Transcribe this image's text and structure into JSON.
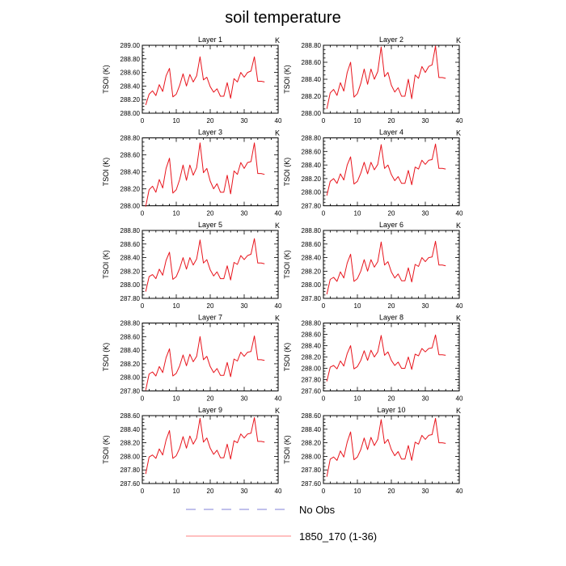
{
  "title": "soil temperature",
  "legend": [
    {
      "label": "No Obs",
      "color": "#8080d8",
      "style": "dashed"
    },
    {
      "label": "1850_170 (1-36)",
      "color": "#ff8080",
      "style": "solid"
    }
  ],
  "chart_data": [
    {
      "type": "line",
      "title": "Layer 1",
      "unit": "K",
      "ylabel": "TSOI  (K)",
      "xlim": [
        0,
        40
      ],
      "xticks": [
        0,
        10,
        20,
        30,
        40
      ],
      "ylim": [
        288.0,
        289.0
      ],
      "yticks": [
        "288.00",
        "288.20",
        "288.40",
        "288.60",
        "288.80",
        "289.00"
      ],
      "series": [
        {
          "name": "1850_170 (1-36)",
          "color": "#e8141c",
          "x": [
            1,
            2,
            3,
            4,
            5,
            6,
            7,
            8,
            9,
            10,
            11,
            12,
            13,
            14,
            15,
            16,
            17,
            18,
            19,
            20,
            21,
            22,
            23,
            24,
            25,
            26,
            27,
            28,
            29,
            30,
            31,
            32,
            33,
            34,
            35,
            36
          ],
          "values": [
            288.12,
            288.28,
            288.33,
            288.26,
            288.42,
            288.32,
            288.55,
            288.66,
            288.24,
            288.28,
            288.41,
            288.58,
            288.4,
            288.57,
            288.46,
            288.55,
            288.83,
            288.49,
            288.53,
            288.39,
            288.31,
            288.36,
            288.25,
            288.25,
            288.45,
            288.22,
            288.51,
            288.46,
            288.6,
            288.53,
            288.6,
            288.62,
            288.83,
            288.47,
            288.47,
            288.46
          ]
        }
      ]
    },
    {
      "type": "line",
      "title": "Layer 2",
      "unit": "K",
      "ylabel": "TSOI  (K)",
      "xlim": [
        0,
        40
      ],
      "xticks": [
        0,
        10,
        20,
        30,
        40
      ],
      "ylim": [
        288.0,
        288.8
      ],
      "yticks": [
        "288.00",
        "288.20",
        "288.40",
        "288.60",
        "288.80"
      ],
      "series": [
        {
          "name": "1850_170 (1-36)",
          "color": "#e8141c",
          "x": [
            1,
            2,
            3,
            4,
            5,
            6,
            7,
            8,
            9,
            10,
            11,
            12,
            13,
            14,
            15,
            16,
            17,
            18,
            19,
            20,
            21,
            22,
            23,
            24,
            25,
            26,
            27,
            28,
            29,
            30,
            31,
            32,
            33,
            34,
            35,
            36
          ],
          "values": [
            288.05,
            288.24,
            288.28,
            288.21,
            288.36,
            288.26,
            288.48,
            288.6,
            288.19,
            288.23,
            288.35,
            288.52,
            288.34,
            288.52,
            288.4,
            288.49,
            288.78,
            288.43,
            288.48,
            288.33,
            288.25,
            288.3,
            288.2,
            288.2,
            288.4,
            288.17,
            288.45,
            288.41,
            288.55,
            288.48,
            288.55,
            288.57,
            288.79,
            288.42,
            288.42,
            288.41
          ]
        }
      ]
    },
    {
      "type": "line",
      "title": "Layer 3",
      "unit": "K",
      "ylabel": "TSOI  (K)",
      "xlim": [
        0,
        40
      ],
      "xticks": [
        0,
        10,
        20,
        30,
        40
      ],
      "ylim": [
        288.0,
        288.8
      ],
      "yticks": [
        "288.00",
        "288.20",
        "288.40",
        "288.60",
        "288.80"
      ],
      "series": [
        {
          "name": "1850_170 (1-36)",
          "color": "#e8141c",
          "x": [
            1,
            2,
            3,
            4,
            5,
            6,
            7,
            8,
            9,
            10,
            11,
            12,
            13,
            14,
            15,
            16,
            17,
            18,
            19,
            20,
            21,
            22,
            23,
            24,
            25,
            26,
            27,
            28,
            29,
            30,
            31,
            32,
            33,
            34,
            35,
            36
          ],
          "values": [
            287.99,
            288.19,
            288.23,
            288.16,
            288.31,
            288.21,
            288.44,
            288.56,
            288.15,
            288.19,
            288.31,
            288.48,
            288.3,
            288.48,
            288.36,
            288.45,
            288.74,
            288.39,
            288.44,
            288.29,
            288.2,
            288.26,
            288.16,
            288.16,
            288.36,
            288.14,
            288.41,
            288.37,
            288.51,
            288.44,
            288.51,
            288.52,
            288.74,
            288.38,
            288.38,
            288.37
          ]
        }
      ]
    },
    {
      "type": "line",
      "title": "Layer 4",
      "unit": "K",
      "ylabel": "TSOI  (K)",
      "xlim": [
        0,
        40
      ],
      "xticks": [
        0,
        10,
        20,
        30,
        40
      ],
      "ylim": [
        287.8,
        288.8
      ],
      "yticks": [
        "287.80",
        "288.00",
        "288.20",
        "288.40",
        "288.60",
        "288.80"
      ],
      "series": [
        {
          "name": "1850_170 (1-36)",
          "color": "#e8141c",
          "x": [
            1,
            2,
            3,
            4,
            5,
            6,
            7,
            8,
            9,
            10,
            11,
            12,
            13,
            14,
            15,
            16,
            17,
            18,
            19,
            20,
            21,
            22,
            23,
            24,
            25,
            26,
            27,
            28,
            29,
            30,
            31,
            32,
            33,
            34,
            35,
            36
          ],
          "values": [
            287.95,
            288.16,
            288.2,
            288.13,
            288.27,
            288.18,
            288.4,
            288.52,
            288.12,
            288.16,
            288.28,
            288.44,
            288.27,
            288.44,
            288.33,
            288.41,
            288.7,
            288.35,
            288.4,
            288.26,
            288.17,
            288.23,
            288.13,
            288.13,
            288.32,
            288.11,
            288.37,
            288.34,
            288.47,
            288.41,
            288.47,
            288.48,
            288.71,
            288.35,
            288.35,
            288.34
          ]
        }
      ]
    },
    {
      "type": "line",
      "title": "Layer 5",
      "unit": "K",
      "ylabel": "TSOI  (K)",
      "xlim": [
        0,
        40
      ],
      "xticks": [
        0,
        10,
        20,
        30,
        40
      ],
      "ylim": [
        287.8,
        288.8
      ],
      "yticks": [
        "287.80",
        "288.00",
        "288.20",
        "288.40",
        "288.60",
        "288.80"
      ],
      "series": [
        {
          "name": "1850_170 (1-36)",
          "color": "#e8141c",
          "x": [
            1,
            2,
            3,
            4,
            5,
            6,
            7,
            8,
            9,
            10,
            11,
            12,
            13,
            14,
            15,
            16,
            17,
            18,
            19,
            20,
            21,
            22,
            23,
            24,
            25,
            26,
            27,
            28,
            29,
            30,
            31,
            32,
            33,
            34,
            35,
            36
          ],
          "values": [
            287.9,
            288.12,
            288.15,
            288.09,
            288.23,
            288.14,
            288.36,
            288.48,
            288.08,
            288.12,
            288.24,
            288.4,
            288.23,
            288.4,
            288.29,
            288.38,
            288.66,
            288.32,
            288.37,
            288.22,
            288.13,
            288.19,
            288.09,
            288.09,
            288.28,
            288.07,
            288.33,
            288.3,
            288.43,
            288.37,
            288.43,
            288.45,
            288.68,
            288.32,
            288.32,
            288.31
          ]
        }
      ]
    },
    {
      "type": "line",
      "title": "Layer 6",
      "unit": "K",
      "ylabel": "TSOI  (K)",
      "xlim": [
        0,
        40
      ],
      "xticks": [
        0,
        10,
        20,
        30,
        40
      ],
      "ylim": [
        287.8,
        288.8
      ],
      "yticks": [
        "287.80",
        "288.00",
        "288.20",
        "288.40",
        "288.60",
        "288.80"
      ],
      "series": [
        {
          "name": "1850_170 (1-36)",
          "color": "#e8141c",
          "x": [
            1,
            2,
            3,
            4,
            5,
            6,
            7,
            8,
            9,
            10,
            11,
            12,
            13,
            14,
            15,
            16,
            17,
            18,
            19,
            20,
            21,
            22,
            23,
            24,
            25,
            26,
            27,
            28,
            29,
            30,
            31,
            32,
            33,
            34,
            35,
            36
          ],
          "values": [
            287.86,
            288.08,
            288.11,
            288.05,
            288.19,
            288.1,
            288.32,
            288.45,
            288.05,
            288.09,
            288.2,
            288.37,
            288.2,
            288.37,
            288.26,
            288.34,
            288.63,
            288.29,
            288.34,
            288.19,
            288.1,
            288.16,
            288.06,
            288.06,
            288.25,
            288.04,
            288.3,
            288.27,
            288.4,
            288.34,
            288.4,
            288.41,
            288.64,
            288.29,
            288.29,
            288.28
          ]
        }
      ]
    },
    {
      "type": "line",
      "title": "Layer 7",
      "unit": "K",
      "ylabel": "TSOI  (K)",
      "xlim": [
        0,
        40
      ],
      "xticks": [
        0,
        10,
        20,
        30,
        40
      ],
      "ylim": [
        287.8,
        288.8
      ],
      "yticks": [
        "287.80",
        "288.00",
        "288.20",
        "288.40",
        "288.60",
        "288.80"
      ],
      "series": [
        {
          "name": "1850_170 (1-36)",
          "color": "#e8141c",
          "x": [
            1,
            2,
            3,
            4,
            5,
            6,
            7,
            8,
            9,
            10,
            11,
            12,
            13,
            14,
            15,
            16,
            17,
            18,
            19,
            20,
            21,
            22,
            23,
            24,
            25,
            26,
            27,
            28,
            29,
            30,
            31,
            32,
            33,
            34,
            35,
            36
          ],
          "values": [
            287.81,
            288.05,
            288.08,
            288.02,
            288.16,
            288.07,
            288.29,
            288.42,
            288.02,
            288.06,
            288.17,
            288.33,
            288.17,
            288.34,
            288.23,
            288.31,
            288.6,
            288.26,
            288.31,
            288.16,
            288.07,
            288.13,
            288.03,
            288.03,
            288.22,
            288.01,
            288.27,
            288.24,
            288.37,
            288.31,
            288.37,
            288.38,
            288.61,
            288.26,
            288.26,
            288.25
          ]
        }
      ]
    },
    {
      "type": "line",
      "title": "Layer 8",
      "unit": "K",
      "ylabel": "TSOI  (K)",
      "xlim": [
        0,
        40
      ],
      "xticks": [
        0,
        10,
        20,
        30,
        40
      ],
      "ylim": [
        287.6,
        288.8
      ],
      "yticks": [
        "287.60",
        "287.80",
        "288.00",
        "288.20",
        "288.40",
        "288.60",
        "288.80"
      ],
      "series": [
        {
          "name": "1850_170 (1-36)",
          "color": "#e8141c",
          "x": [
            1,
            2,
            3,
            4,
            5,
            6,
            7,
            8,
            9,
            10,
            11,
            12,
            13,
            14,
            15,
            16,
            17,
            18,
            19,
            20,
            21,
            22,
            23,
            24,
            25,
            26,
            27,
            28,
            29,
            30,
            31,
            32,
            33,
            34,
            35,
            36
          ],
          "values": [
            287.77,
            288.02,
            288.05,
            287.99,
            288.13,
            288.04,
            288.26,
            288.4,
            287.99,
            288.03,
            288.14,
            288.31,
            288.14,
            288.32,
            288.2,
            288.29,
            288.58,
            288.23,
            288.29,
            288.14,
            288.05,
            288.11,
            288.0,
            288.0,
            288.2,
            287.98,
            288.25,
            288.22,
            288.35,
            288.29,
            288.35,
            288.36,
            288.59,
            288.24,
            288.24,
            288.23
          ]
        }
      ]
    },
    {
      "type": "line",
      "title": "Layer 9",
      "unit": "K",
      "ylabel": "TSOI  (K)",
      "xlim": [
        0,
        40
      ],
      "xticks": [
        0,
        10,
        20,
        30,
        40
      ],
      "ylim": [
        287.6,
        288.6
      ],
      "yticks": [
        "287.60",
        "287.80",
        "288.00",
        "288.20",
        "288.40",
        "288.60"
      ],
      "series": [
        {
          "name": "1850_170 (1-36)",
          "color": "#e8141c",
          "x": [
            1,
            2,
            3,
            4,
            5,
            6,
            7,
            8,
            9,
            10,
            11,
            12,
            13,
            14,
            15,
            16,
            17,
            18,
            19,
            20,
            21,
            22,
            23,
            24,
            25,
            26,
            27,
            28,
            29,
            30,
            31,
            32,
            33,
            34,
            35,
            36
          ],
          "values": [
            287.74,
            287.99,
            288.02,
            287.97,
            288.11,
            288.02,
            288.24,
            288.38,
            287.97,
            288.01,
            288.12,
            288.29,
            288.12,
            288.3,
            288.18,
            288.27,
            288.56,
            288.21,
            288.27,
            288.12,
            288.03,
            288.09,
            287.98,
            287.98,
            288.18,
            287.96,
            288.23,
            288.2,
            288.33,
            288.27,
            288.33,
            288.34,
            288.57,
            288.22,
            288.22,
            288.21
          ]
        }
      ]
    },
    {
      "type": "line",
      "title": "Layer 10",
      "unit": "K",
      "ylabel": "TSOI  (K)",
      "xlim": [
        0,
        40
      ],
      "xticks": [
        0,
        10,
        20,
        30,
        40
      ],
      "ylim": [
        287.6,
        288.6
      ],
      "yticks": [
        "287.60",
        "287.80",
        "288.00",
        "288.20",
        "288.40",
        "288.60"
      ],
      "series": [
        {
          "name": "1850_170 (1-36)",
          "color": "#e8141c",
          "x": [
            1,
            2,
            3,
            4,
            5,
            6,
            7,
            8,
            9,
            10,
            11,
            12,
            13,
            14,
            15,
            16,
            17,
            18,
            19,
            20,
            21,
            22,
            23,
            24,
            25,
            26,
            27,
            28,
            29,
            30,
            31,
            32,
            33,
            34,
            35,
            36
          ],
          "values": [
            287.7,
            287.96,
            287.99,
            287.94,
            288.08,
            287.99,
            288.21,
            288.36,
            287.95,
            287.99,
            288.1,
            288.27,
            288.1,
            288.28,
            288.16,
            288.25,
            288.54,
            288.19,
            288.25,
            288.1,
            288.01,
            288.07,
            287.96,
            287.96,
            288.16,
            287.94,
            288.21,
            288.18,
            288.31,
            288.25,
            288.31,
            288.32,
            288.56,
            288.2,
            288.2,
            288.19
          ]
        }
      ]
    }
  ]
}
